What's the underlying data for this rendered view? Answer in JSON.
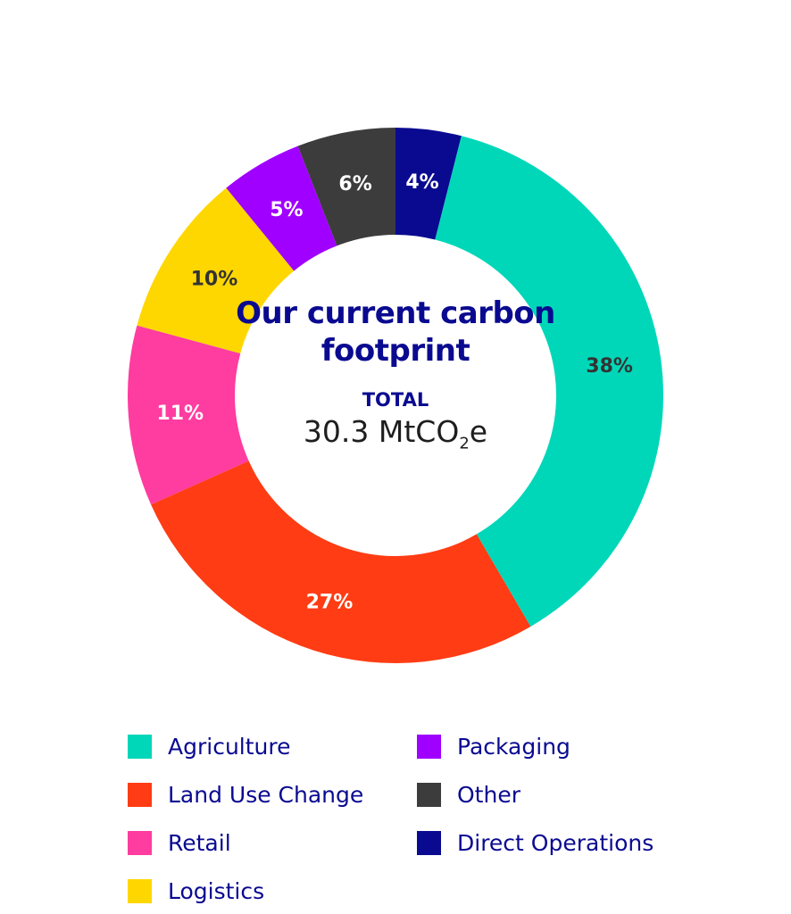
{
  "chart_data": {
    "type": "pie",
    "variant": "donut",
    "start": "top",
    "direction": "clockwise",
    "title": "Our current carbon footprint",
    "total_label": "TOTAL",
    "total_value": "30.3 MtCO",
    "total_sub": "2",
    "total_suffix": "e",
    "slices": [
      {
        "name": "Direct Operations",
        "value": 4,
        "label": "4%",
        "color": "#0a0a91",
        "label_color": "#ffffff"
      },
      {
        "name": "Agriculture",
        "value": 38,
        "label": "38%",
        "color": "#00d7b9",
        "label_color": "#333333"
      },
      {
        "name": "Land Use Change",
        "value": 27,
        "label": "27%",
        "color": "#ff3c14",
        "label_color": "#ffffff"
      },
      {
        "name": "Retail",
        "value": 11,
        "label": "11%",
        "color": "#ff3ca0",
        "label_color": "#ffffff"
      },
      {
        "name": "Logistics",
        "value": 10,
        "label": "10%",
        "color": "#ffd700",
        "label_color": "#333333"
      },
      {
        "name": "Packaging",
        "value": 5,
        "label": "5%",
        "color": "#a000ff",
        "label_color": "#ffffff"
      },
      {
        "name": "Other",
        "value": 6,
        "label": "6%",
        "color": "#3c3c3c",
        "label_color": "#ffffff"
      }
    ],
    "legend": [
      {
        "name": "Agriculture",
        "color": "#00d7b9"
      },
      {
        "name": "Land Use Change",
        "color": "#ff3c14"
      },
      {
        "name": "Retail",
        "color": "#ff3ca0"
      },
      {
        "name": "Logistics",
        "color": "#ffd700"
      },
      {
        "name": "Packaging",
        "color": "#a000ff"
      },
      {
        "name": "Other",
        "color": "#3c3c3c"
      },
      {
        "name": "Direct Operations",
        "color": "#0a0a91"
      }
    ],
    "legend_position": "bottom"
  }
}
